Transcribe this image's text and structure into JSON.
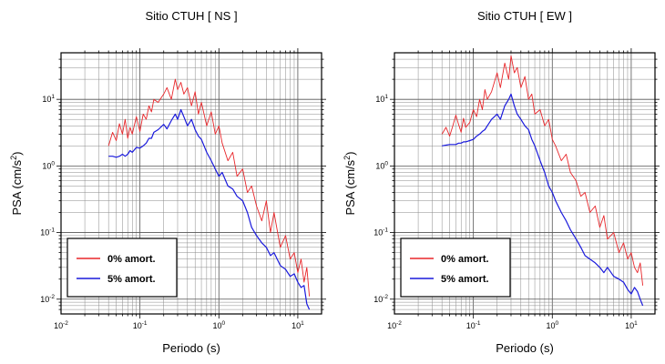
{
  "chart_data": [
    {
      "type": "line",
      "title": "Sitio CTUH [ NS ]",
      "xlabel": "Periodo (s)",
      "ylabel": "PSA (cm/s²)",
      "xscale": "log",
      "yscale": "log",
      "xlim": [
        0.01,
        20
      ],
      "ylim": [
        0.006,
        50
      ],
      "grid": true,
      "legend_position": "bottom-left",
      "series": [
        {
          "name": "0% amort.",
          "color": "#e8262a",
          "x": [
            0.04,
            0.045,
            0.05,
            0.055,
            0.06,
            0.065,
            0.07,
            0.075,
            0.08,
            0.09,
            0.1,
            0.11,
            0.12,
            0.13,
            0.14,
            0.15,
            0.17,
            0.2,
            0.22,
            0.25,
            0.28,
            0.3,
            0.33,
            0.36,
            0.4,
            0.45,
            0.5,
            0.55,
            0.6,
            0.7,
            0.8,
            0.9,
            1.0,
            1.1,
            1.3,
            1.5,
            1.7,
            2.0,
            2.3,
            2.6,
            3.0,
            3.5,
            4.0,
            4.5,
            5.0,
            6.0,
            7.0,
            8.0,
            9.0,
            10.0,
            11.0,
            12.0,
            13.0,
            14.0
          ],
          "y": [
            2.0,
            3.2,
            2.4,
            4.3,
            3.0,
            5.0,
            2.6,
            3.8,
            3.0,
            5.5,
            3.3,
            6.0,
            5.0,
            8.0,
            6.5,
            10.0,
            9.0,
            12.0,
            15.0,
            10.0,
            20.0,
            14.0,
            18.0,
            12.0,
            15.0,
            8.0,
            13.0,
            6.0,
            9.0,
            4.0,
            6.5,
            3.0,
            4.0,
            2.2,
            1.2,
            1.6,
            0.7,
            0.9,
            0.4,
            0.5,
            0.25,
            0.15,
            0.3,
            0.1,
            0.2,
            0.06,
            0.09,
            0.04,
            0.05,
            0.025,
            0.04,
            0.018,
            0.03,
            0.011
          ]
        },
        {
          "name": "5% amort.",
          "color": "#1a1adc",
          "x": [
            0.04,
            0.045,
            0.05,
            0.055,
            0.06,
            0.065,
            0.07,
            0.075,
            0.08,
            0.09,
            0.1,
            0.11,
            0.12,
            0.13,
            0.14,
            0.15,
            0.17,
            0.2,
            0.22,
            0.25,
            0.28,
            0.3,
            0.33,
            0.36,
            0.4,
            0.45,
            0.5,
            0.55,
            0.6,
            0.7,
            0.8,
            0.9,
            1.0,
            1.1,
            1.3,
            1.5,
            1.7,
            2.0,
            2.3,
            2.6,
            3.0,
            3.5,
            4.0,
            4.5,
            5.0,
            6.0,
            7.0,
            8.0,
            9.0,
            10.0,
            11.0,
            12.0,
            13.0,
            14.0
          ],
          "y": [
            1.4,
            1.4,
            1.35,
            1.4,
            1.5,
            1.4,
            1.5,
            1.7,
            1.6,
            1.9,
            1.85,
            2.0,
            2.2,
            2.6,
            2.6,
            3.2,
            3.5,
            4.2,
            3.6,
            4.8,
            6.0,
            5.0,
            7.0,
            5.5,
            4.0,
            5.0,
            3.5,
            2.8,
            2.5,
            1.6,
            1.2,
            0.9,
            0.7,
            0.8,
            0.5,
            0.45,
            0.35,
            0.3,
            0.2,
            0.12,
            0.09,
            0.07,
            0.06,
            0.045,
            0.05,
            0.032,
            0.028,
            0.022,
            0.024,
            0.018,
            0.015,
            0.016,
            0.0085,
            0.007
          ]
        }
      ]
    },
    {
      "type": "line",
      "title": "Sitio CTUH [ EW ]",
      "xlabel": "Periodo (s)",
      "ylabel": "PSA (cm/s²)",
      "xscale": "log",
      "yscale": "log",
      "xlim": [
        0.01,
        20
      ],
      "ylim": [
        0.006,
        50
      ],
      "grid": true,
      "legend_position": "bottom-left",
      "series": [
        {
          "name": "0% amort.",
          "color": "#e8262a",
          "x": [
            0.04,
            0.045,
            0.05,
            0.055,
            0.06,
            0.065,
            0.07,
            0.075,
            0.08,
            0.09,
            0.1,
            0.11,
            0.12,
            0.13,
            0.14,
            0.15,
            0.17,
            0.2,
            0.22,
            0.25,
            0.28,
            0.3,
            0.33,
            0.36,
            0.4,
            0.45,
            0.5,
            0.55,
            0.6,
            0.7,
            0.8,
            0.9,
            1.0,
            1.1,
            1.3,
            1.5,
            1.7,
            2.0,
            2.3,
            2.6,
            3.0,
            3.5,
            4.0,
            4.5,
            5.0,
            6.0,
            7.0,
            8.0,
            9.0,
            10.0,
            11.0,
            12.0,
            13.0,
            14.0
          ],
          "y": [
            3.0,
            3.8,
            2.8,
            4.0,
            5.8,
            4.2,
            3.2,
            5.2,
            3.8,
            4.5,
            7.0,
            5.5,
            10.0,
            7.0,
            14.0,
            10.0,
            13.0,
            25.0,
            15.0,
            35.0,
            20.0,
            45.0,
            25.0,
            30.0,
            15.0,
            22.0,
            10.0,
            12.0,
            6.0,
            7.0,
            4.0,
            5.0,
            2.5,
            2.0,
            1.2,
            1.5,
            0.8,
            0.6,
            0.35,
            0.4,
            0.2,
            0.25,
            0.12,
            0.18,
            0.08,
            0.1,
            0.05,
            0.07,
            0.04,
            0.05,
            0.03,
            0.025,
            0.035,
            0.016
          ]
        },
        {
          "name": "5% amort.",
          "color": "#1a1adc",
          "x": [
            0.04,
            0.045,
            0.05,
            0.055,
            0.06,
            0.065,
            0.07,
            0.075,
            0.08,
            0.09,
            0.1,
            0.11,
            0.12,
            0.13,
            0.14,
            0.15,
            0.17,
            0.2,
            0.22,
            0.25,
            0.28,
            0.3,
            0.33,
            0.36,
            0.4,
            0.45,
            0.5,
            0.55,
            0.6,
            0.7,
            0.8,
            0.9,
            1.0,
            1.1,
            1.3,
            1.5,
            1.7,
            2.0,
            2.3,
            2.6,
            3.0,
            3.5,
            4.0,
            4.5,
            5.0,
            6.0,
            7.0,
            8.0,
            9.0,
            10.0,
            11.0,
            12.0,
            13.0,
            14.0
          ],
          "y": [
            2.0,
            2.05,
            2.1,
            2.1,
            2.1,
            2.2,
            2.2,
            2.3,
            2.3,
            2.4,
            2.5,
            2.8,
            3.0,
            3.3,
            3.5,
            4.0,
            5.0,
            6.0,
            5.0,
            8.0,
            10.0,
            12.0,
            8.0,
            6.0,
            5.0,
            4.0,
            3.5,
            2.5,
            2.0,
            1.2,
            0.8,
            0.5,
            0.4,
            0.3,
            0.2,
            0.15,
            0.11,
            0.08,
            0.06,
            0.045,
            0.04,
            0.035,
            0.03,
            0.025,
            0.03,
            0.022,
            0.02,
            0.018,
            0.014,
            0.012,
            0.015,
            0.013,
            0.01,
            0.008
          ]
        }
      ]
    }
  ]
}
